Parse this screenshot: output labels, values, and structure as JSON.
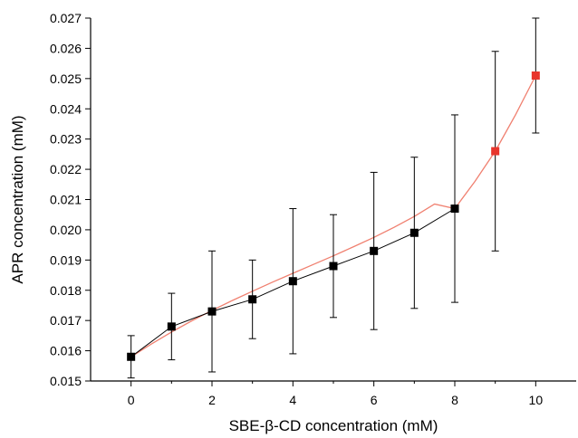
{
  "chart_data": {
    "type": "scatter",
    "xlabel": "SBE-β-CD concentration (mM)",
    "ylabel": "APR concentration (mM)",
    "xlim": [
      -1,
      11
    ],
    "ylim": [
      0.015,
      0.027
    ],
    "x_ticks": [
      0,
      2,
      4,
      6,
      8,
      10
    ],
    "x_tick_labels": [
      "0",
      "2",
      "4",
      "6",
      "8",
      "10"
    ],
    "y_ticks": [
      0.015,
      0.016,
      0.017,
      0.018,
      0.019,
      0.02,
      0.021,
      0.022,
      0.023,
      0.024,
      0.025,
      0.026,
      0.027
    ],
    "y_tick_labels": [
      "0.015",
      "0.016",
      "0.017",
      "0.018",
      "0.019",
      "0.020",
      "0.021",
      "0.022",
      "0.023",
      "0.024",
      "0.025",
      "0.026",
      "0.027"
    ],
    "grid": false,
    "series": [
      {
        "color": "#000000",
        "marker": "square",
        "x": [
          0,
          1,
          2,
          3,
          4,
          5,
          6,
          7,
          8
        ],
        "y": [
          0.0158,
          0.0168,
          0.0173,
          0.0177,
          0.0183,
          0.0188,
          0.0193,
          0.0199,
          0.0207
        ],
        "error_low": [
          0.0151,
          0.0157,
          0.0153,
          0.0164,
          0.0159,
          0.0171,
          0.0167,
          0.0174,
          0.0176
        ],
        "error_high": [
          0.0165,
          0.0179,
          0.0193,
          0.019,
          0.0207,
          0.0205,
          0.0219,
          0.0224,
          0.0238
        ]
      },
      {
        "color": "#e8352c",
        "marker": "square",
        "x": [
          9,
          10
        ],
        "y": [
          0.0226,
          0.0251
        ],
        "error_low": [
          0.0193,
          0.0232
        ],
        "error_high": [
          0.0259,
          0.027
        ]
      }
    ],
    "fit_curve": {
      "color": "#f08070",
      "x": [
        0,
        0.5,
        1,
        1.5,
        2,
        2.5,
        3,
        3.5,
        4,
        4.5,
        5,
        5.5,
        6,
        6.5,
        7,
        7.5,
        8,
        8.5,
        9,
        9.5,
        10
      ],
      "y": [
        0.0158,
        0.01622,
        0.01662,
        0.01699,
        0.01733,
        0.01766,
        0.01797,
        0.01827,
        0.01856,
        0.01885,
        0.01914,
        0.01944,
        0.01975,
        0.02008,
        0.02044,
        0.02085,
        0.0207,
        0.0216,
        0.0226,
        0.0238,
        0.0251
      ]
    }
  }
}
